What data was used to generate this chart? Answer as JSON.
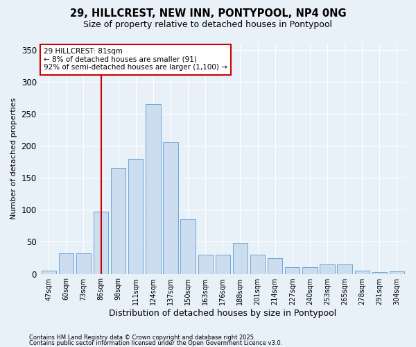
{
  "title": "29, HILLCREST, NEW INN, PONTYPOOL, NP4 0NG",
  "subtitle": "Size of property relative to detached houses in Pontypool",
  "xlabel": "Distribution of detached houses by size in Pontypool",
  "ylabel": "Number of detached properties",
  "categories": [
    "47sqm",
    "60sqm",
    "73sqm",
    "86sqm",
    "98sqm",
    "111sqm",
    "124sqm",
    "137sqm",
    "150sqm",
    "163sqm",
    "176sqm",
    "188sqm",
    "201sqm",
    "214sqm",
    "227sqm",
    "240sqm",
    "253sqm",
    "265sqm",
    "278sqm",
    "291sqm",
    "304sqm"
  ],
  "values": [
    5,
    32,
    32,
    97,
    165,
    180,
    265,
    205,
    85,
    30,
    30,
    48,
    30,
    25,
    10,
    10,
    15,
    15,
    5,
    3,
    4
  ],
  "bar_color": "#ccddf0",
  "bar_edge_color": "#5b9bd5",
  "vline_color": "#cc0000",
  "vline_x_idx": 3,
  "annotation_text": "29 HILLCREST: 81sqm\n← 8% of detached houses are smaller (91)\n92% of semi-detached houses are larger (1,100) →",
  "annotation_box_facecolor": "#ffffff",
  "annotation_box_edgecolor": "#cc0000",
  "ylim": [
    0,
    360
  ],
  "yticks": [
    0,
    50,
    100,
    150,
    200,
    250,
    300,
    350
  ],
  "footer1": "Contains HM Land Registry data © Crown copyright and database right 2025.",
  "footer2": "Contains public sector information licensed under the Open Government Licence v3.0.",
  "bg_color": "#e8f0f8",
  "grid_color": "#ffffff",
  "title_fontsize": 10.5,
  "subtitle_fontsize": 9,
  "ylabel_fontsize": 8,
  "xlabel_fontsize": 9,
  "tick_fontsize": 7,
  "footer_fontsize": 6,
  "ann_fontsize": 7.5
}
